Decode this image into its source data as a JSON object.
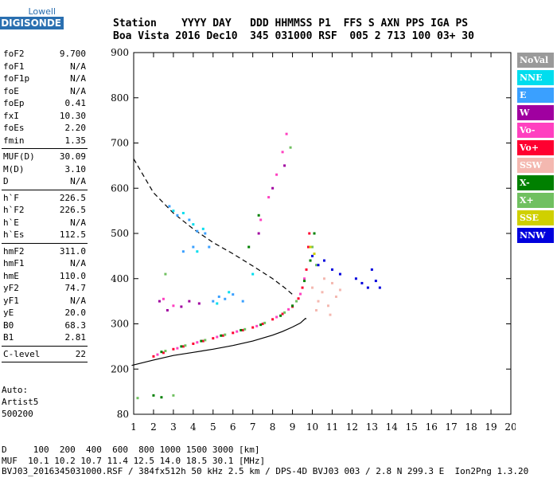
{
  "logo": {
    "line1": "Lowell",
    "line2": "DIGISONDE"
  },
  "header": {
    "line1": "Station    YYYY DAY   DDD HHMMSS P1  FFS S AXN PPS IGA PS",
    "line2": "Boa Vista 2016 Dec10  345 031000 RSF  005 2 713 100 03+ 30"
  },
  "params": [
    {
      "k": "foF2",
      "v": "9.700"
    },
    {
      "k": "foF1",
      "v": "N/A"
    },
    {
      "k": "foF1p",
      "v": "N/A"
    },
    {
      "k": "foE",
      "v": "N/A"
    },
    {
      "k": "foEp",
      "v": "0.41"
    },
    {
      "k": "fxI",
      "v": "10.30"
    },
    {
      "k": "foEs",
      "v": "2.20"
    },
    {
      "k": "fmin",
      "v": "1.35"
    },
    {
      "sep": true
    },
    {
      "k": "MUF(D)",
      "v": "30.09"
    },
    {
      "k": "M(D)",
      "v": "3.10"
    },
    {
      "k": "D",
      "v": "N/A"
    },
    {
      "sep": true
    },
    {
      "k": "h`F",
      "v": "226.5"
    },
    {
      "k": "h`F2",
      "v": "226.5"
    },
    {
      "k": "h`E",
      "v": "N/A"
    },
    {
      "k": "h`Es",
      "v": "112.5"
    },
    {
      "sep": true
    },
    {
      "k": "hmF2",
      "v": "311.0"
    },
    {
      "k": "hmF1",
      "v": "N/A"
    },
    {
      "k": "hmE",
      "v": "110.0"
    },
    {
      "k": "yF2",
      "v": "74.7"
    },
    {
      "k": "yF1",
      "v": "N/A"
    },
    {
      "k": "yE",
      "v": "20.0"
    },
    {
      "k": "B0",
      "v": "68.3"
    },
    {
      "k": "B1",
      "v": "2.81"
    },
    {
      "sep": true
    },
    {
      "k": "C-level",
      "v": "22"
    },
    {
      "sep": true
    }
  ],
  "auto": {
    "line1": "Auto:",
    "line2": "Artist5",
    "line3": "500200"
  },
  "legend": [
    {
      "label": "NoVal",
      "color": "#9a9a9a"
    },
    {
      "label": "NNE",
      "color": "#00ddee"
    },
    {
      "label": "E",
      "color": "#3aa0ff"
    },
    {
      "label": "W",
      "color": "#a000a0"
    },
    {
      "label": "Vo-",
      "color": "#ff40c0"
    },
    {
      "label": "Vo+",
      "color": "#ff0030"
    },
    {
      "label": "SSW",
      "color": "#f4b8b0"
    },
    {
      "label": "X-",
      "color": "#008000"
    },
    {
      "label": "X+",
      "color": "#70c060"
    },
    {
      "label": "SSE",
      "color": "#d0d000"
    },
    {
      "label": "NNW",
      "color": "#0000dd"
    }
  ],
  "footer": {
    "line1": "D     100  200  400  600  800 1000 1500 3000 [km]",
    "line2": "MUF  10.1 10.2 10.7 11.4 12.5 14.0 18.5 30.1 [MHz]",
    "line3": "BVJ03_2016345031000.RSF / 384fx512h 50 kHz 2.5 km / DPS-4D BVJ03 003 / 2.8 N 299.3 E  Ion2Png 1.3.20"
  },
  "chart_data": {
    "type": "scatter",
    "title": "",
    "xlabel": "",
    "ylabel": "",
    "xlim": [
      1,
      20
    ],
    "ylim": [
      80,
      900
    ],
    "xticks": [
      1,
      2,
      3,
      4,
      5,
      6,
      7,
      8,
      9,
      10,
      11,
      12,
      13,
      14,
      15,
      16,
      17,
      18,
      19,
      20
    ],
    "yticks": [
      80,
      200,
      300,
      400,
      500,
      600,
      700,
      800,
      900
    ],
    "grid": false,
    "legend_position": "right",
    "series": [
      {
        "color": "#ff0030",
        "points": [
          [
            2.0,
            228
          ],
          [
            2.5,
            236
          ],
          [
            3.0,
            244
          ],
          [
            3.5,
            250
          ],
          [
            4.0,
            256
          ],
          [
            4.5,
            262
          ],
          [
            5.0,
            268
          ],
          [
            5.5,
            274
          ],
          [
            6.0,
            280
          ],
          [
            6.5,
            286
          ],
          [
            7.0,
            292
          ],
          [
            7.5,
            300
          ],
          [
            8.0,
            310
          ],
          [
            8.5,
            322
          ],
          [
            9.0,
            338
          ],
          [
            9.3,
            356
          ],
          [
            9.5,
            380
          ],
          [
            9.7,
            420
          ],
          [
            9.8,
            470
          ],
          [
            9.85,
            500
          ]
        ]
      },
      {
        "color": "#ff40c0",
        "points": [
          [
            2.2,
            232
          ],
          [
            3.2,
            246
          ],
          [
            4.2,
            259
          ],
          [
            5.2,
            271
          ],
          [
            6.2,
            283
          ],
          [
            7.2,
            295
          ],
          [
            8.2,
            315
          ],
          [
            8.8,
            332
          ],
          [
            9.4,
            366
          ],
          [
            9.6,
            400
          ],
          [
            7.4,
            530
          ],
          [
            7.8,
            580
          ],
          [
            8.2,
            630
          ],
          [
            8.5,
            680
          ],
          [
            8.7,
            720
          ],
          [
            2.5,
            355
          ],
          [
            3.0,
            340
          ]
        ]
      },
      {
        "color": "#008000",
        "points": [
          [
            2.4,
            238
          ],
          [
            3.4,
            250
          ],
          [
            4.4,
            262
          ],
          [
            5.4,
            274
          ],
          [
            6.4,
            286
          ],
          [
            7.4,
            298
          ],
          [
            8.4,
            318
          ],
          [
            9.0,
            340
          ],
          [
            9.6,
            395
          ],
          [
            9.9,
            440
          ],
          [
            10.1,
            500
          ],
          [
            2.0,
            130
          ],
          [
            2.4,
            125
          ],
          [
            6.8,
            470
          ],
          [
            7.3,
            540
          ]
        ]
      },
      {
        "color": "#70c060",
        "points": [
          [
            2.6,
            240
          ],
          [
            3.6,
            252
          ],
          [
            4.6,
            264
          ],
          [
            5.6,
            276
          ],
          [
            6.6,
            288
          ],
          [
            7.6,
            302
          ],
          [
            8.6,
            325
          ],
          [
            9.2,
            350
          ],
          [
            10.0,
            470
          ],
          [
            10.2,
            430
          ],
          [
            3.0,
            130
          ],
          [
            1.2,
            123
          ],
          [
            2.6,
            410
          ],
          [
            8.9,
            690
          ]
        ]
      },
      {
        "color": "#3aa0ff",
        "points": [
          [
            2.8,
            560
          ],
          [
            3.2,
            540
          ],
          [
            3.8,
            530
          ],
          [
            4.2,
            505
          ],
          [
            4.6,
            500
          ],
          [
            5.0,
            350
          ],
          [
            5.3,
            360
          ],
          [
            5.6,
            355
          ],
          [
            6.0,
            365
          ],
          [
            6.5,
            350
          ],
          [
            3.5,
            460
          ],
          [
            4.0,
            470
          ],
          [
            4.8,
            470
          ]
        ]
      },
      {
        "color": "#00ddee",
        "points": [
          [
            3.0,
            550
          ],
          [
            3.5,
            545
          ],
          [
            4.0,
            520
          ],
          [
            4.5,
            510
          ],
          [
            5.2,
            345
          ],
          [
            5.8,
            370
          ],
          [
            4.2,
            460
          ],
          [
            7.0,
            410
          ]
        ]
      },
      {
        "color": "#a000a0",
        "points": [
          [
            2.3,
            350
          ],
          [
            2.7,
            330
          ],
          [
            3.4,
            338
          ],
          [
            3.8,
            350
          ],
          [
            4.3,
            345
          ],
          [
            7.3,
            500
          ],
          [
            8.0,
            600
          ],
          [
            8.6,
            650
          ]
        ]
      },
      {
        "color": "#f4b8b0",
        "points": [
          [
            10.0,
            380
          ],
          [
            10.3,
            350
          ],
          [
            10.5,
            370
          ],
          [
            10.8,
            340
          ],
          [
            11.0,
            390
          ],
          [
            11.2,
            360
          ],
          [
            10.6,
            400
          ],
          [
            10.2,
            330
          ],
          [
            11.4,
            375
          ],
          [
            10.9,
            320
          ]
        ]
      },
      {
        "color": "#0000dd",
        "points": [
          [
            10.0,
            450
          ],
          [
            10.3,
            430
          ],
          [
            10.6,
            440
          ],
          [
            11.0,
            420
          ],
          [
            11.4,
            410
          ],
          [
            12.2,
            400
          ],
          [
            12.5,
            390
          ],
          [
            12.8,
            380
          ],
          [
            13.0,
            420
          ],
          [
            13.2,
            395
          ],
          [
            13.4,
            380
          ]
        ]
      },
      {
        "color": "#d0d000",
        "points": [
          [
            9.9,
            470
          ],
          [
            10.1,
            455
          ]
        ]
      }
    ],
    "profile_curve": [
      [
        0.9,
        208
      ],
      [
        2.0,
        220
      ],
      [
        3.0,
        230
      ],
      [
        4.0,
        237
      ],
      [
        5.0,
        244
      ],
      [
        6.0,
        252
      ],
      [
        7.0,
        262
      ],
      [
        8.0,
        275
      ],
      [
        8.5,
        283
      ],
      [
        9.0,
        293
      ],
      [
        9.4,
        302
      ],
      [
        9.65,
        312
      ],
      [
        9.7,
        311
      ]
    ],
    "muf_curve": [
      [
        1.0,
        665
      ],
      [
        2.0,
        590
      ],
      [
        3.0,
        545
      ],
      [
        4.0,
        510
      ],
      [
        5.0,
        480
      ],
      [
        6.0,
        455
      ],
      [
        7.0,
        428
      ],
      [
        8.0,
        400
      ],
      [
        8.6,
        380
      ],
      [
        9.0,
        365
      ]
    ]
  }
}
